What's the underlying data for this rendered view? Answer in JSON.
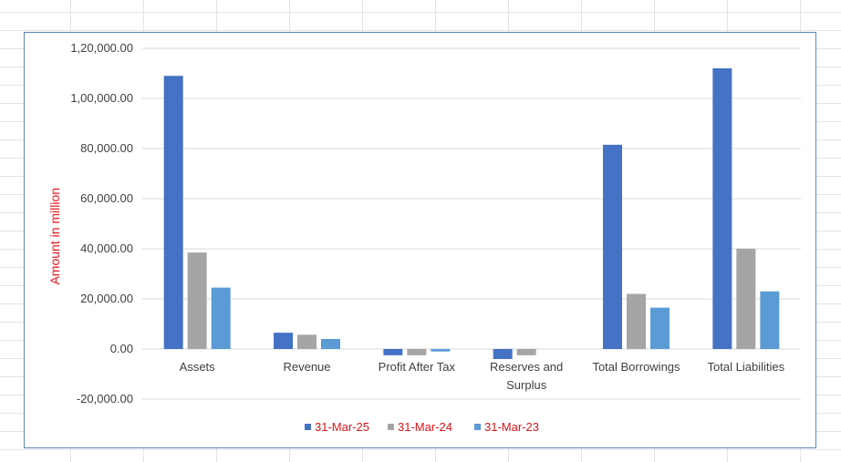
{
  "chart_data": {
    "type": "bar",
    "title": "",
    "xlabel": "",
    "ylabel": "Amount in million",
    "ylim": [
      -20000,
      120000
    ],
    "yticks": [
      -20000,
      0,
      20000,
      40000,
      60000,
      80000,
      100000,
      120000
    ],
    "ytick_labels": [
      "-20,000.00",
      "0.00",
      "20,000.00",
      "40,000.00",
      "60,000.00",
      "80,000.00",
      "1,00,000.00",
      "1,20,000.00"
    ],
    "grid": true,
    "legend_position": "bottom",
    "categories": [
      [
        "Assets"
      ],
      [
        "Revenue"
      ],
      [
        "Profit After Tax"
      ],
      [
        "Reserves and",
        "Surplus"
      ],
      [
        "Total Borrowings"
      ],
      [
        "Total Liabilities"
      ]
    ],
    "series": [
      {
        "name": "31-Mar-25",
        "color": "#4472c4",
        "values": [
          109000,
          6500,
          -2500,
          -4000,
          81500,
          112000
        ]
      },
      {
        "name": "31-Mar-24",
        "color": "#a5a5a5",
        "values": [
          38500,
          5700,
          -2500,
          -2500,
          22000,
          40000
        ]
      },
      {
        "name": "31-Mar-23",
        "color": "#5b9bd5",
        "values": [
          24500,
          4000,
          -1000,
          0,
          16500,
          23000
        ]
      }
    ]
  }
}
